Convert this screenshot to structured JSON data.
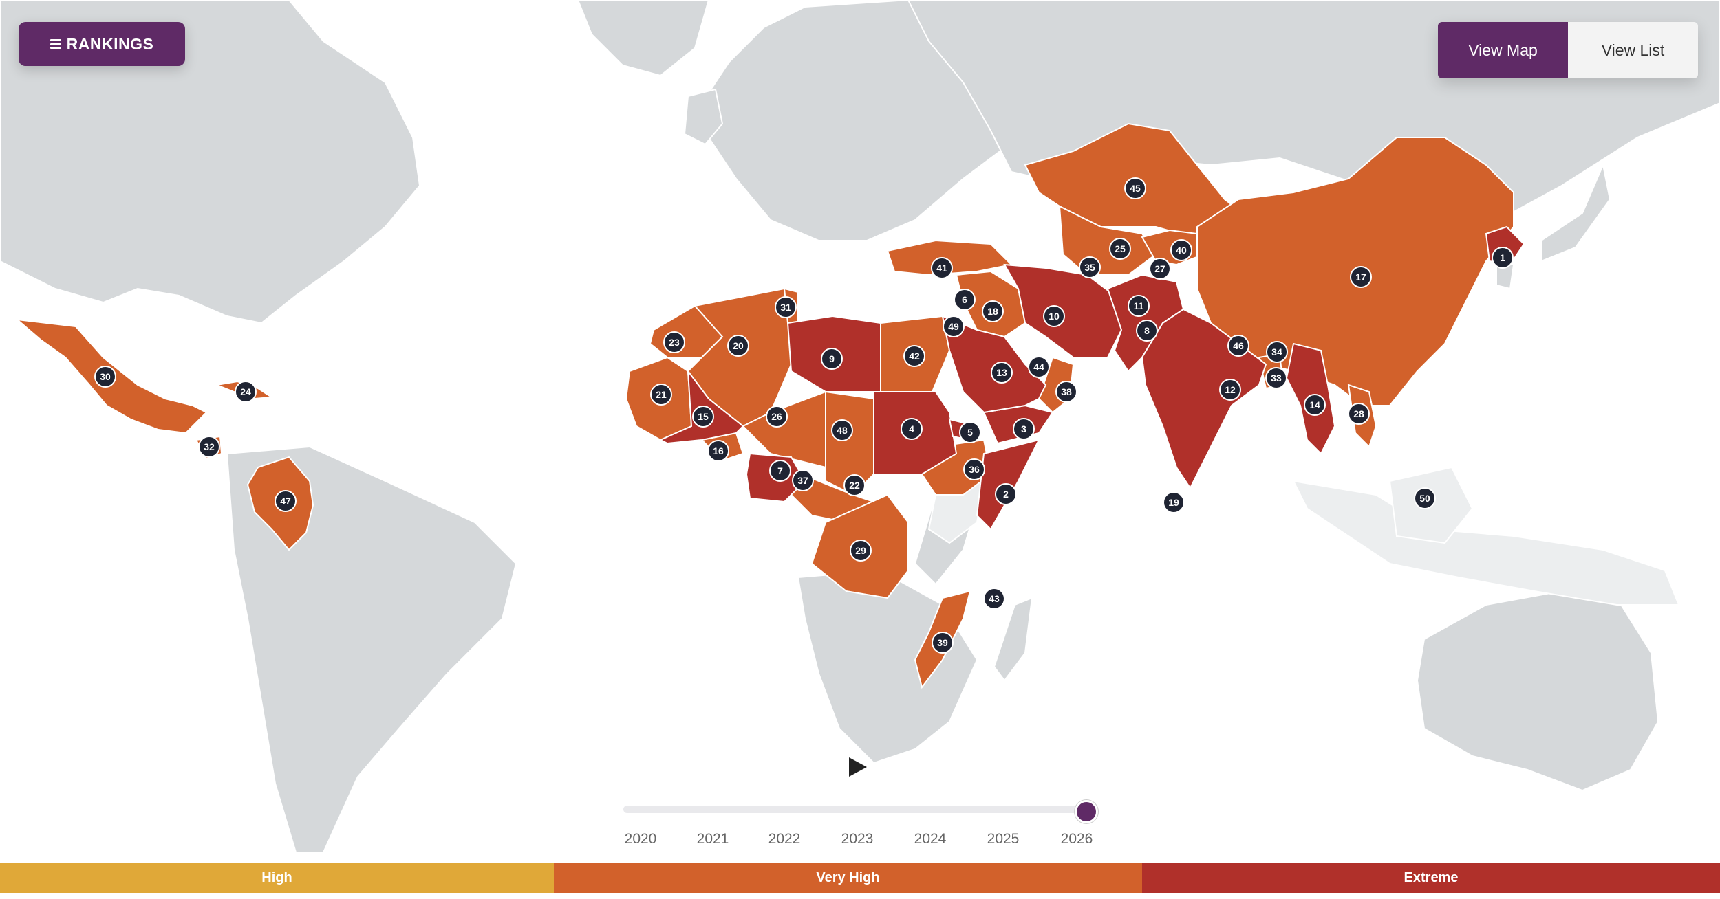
{
  "header": {
    "rankings_label": "RANKINGS",
    "view_map_label": "View Map",
    "view_list_label": "View List"
  },
  "icons": {
    "menu": "menu-icon",
    "play": "play-icon"
  },
  "colors": {
    "purple": "#5f2a66",
    "high": "#e0a838",
    "very_high": "#d2612b",
    "extreme": "#b0302a",
    "land": "#d5d8da",
    "marker": "#1f2433"
  },
  "timeline": {
    "years": [
      "2020",
      "2021",
      "2022",
      "2023",
      "2024",
      "2025",
      "2026"
    ],
    "selected_year": "2026"
  },
  "legend": {
    "high": "High",
    "very_high": "Very High",
    "extreme": "Extreme"
  },
  "map": {
    "rankings": [
      "1",
      "2",
      "3",
      "4",
      "5",
      "6",
      "7",
      "8",
      "9",
      "10",
      "11",
      "12",
      "13",
      "14",
      "15",
      "16",
      "17",
      "18",
      "19",
      "20",
      "21",
      "22",
      "23",
      "24",
      "25",
      "26",
      "27",
      "28",
      "29",
      "30",
      "31",
      "32",
      "33",
      "34",
      "35",
      "36",
      "37",
      "38",
      "39",
      "40",
      "41",
      "42",
      "43",
      "44",
      "45",
      "46",
      "47",
      "48",
      "49",
      "50"
    ]
  }
}
